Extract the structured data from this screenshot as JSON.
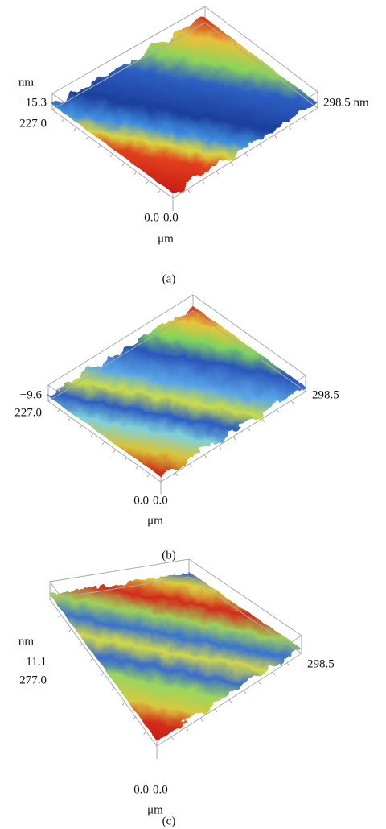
{
  "panels": [
    {
      "label": "(a)",
      "z_unit": "nm",
      "z_top": "−15.3",
      "y_end": "227.0",
      "x_end": "298.5 nm",
      "origin_left": "0.0",
      "origin_right": "0.0",
      "unit": "μm"
    },
    {
      "label": "(b)",
      "z_top": "−9.6",
      "y_end": "227.0",
      "x_end": "298.5",
      "origin_left": "0.0",
      "origin_right": "0.0",
      "unit": "μm"
    },
    {
      "label": "(c)",
      "z_unit": "nm",
      "z_top": "−11.1",
      "y_end": "277.0",
      "x_end": "298.5",
      "origin_left": "0.0",
      "origin_right": "0.0",
      "unit": "μm"
    }
  ]
}
